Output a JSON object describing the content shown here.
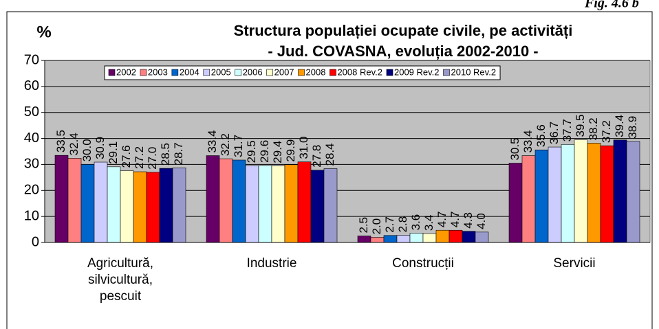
{
  "fig_label": "Fig. 4.6 b",
  "chart_data": {
    "type": "bar",
    "title": "Structura populației ocupate civile, pe activități",
    "subtitle": "- Jud. COVASNA, evoluția 2002-2010 -",
    "y_label": "%",
    "categories": [
      "Agricultură, silvicultură, pescuit",
      "Industrie",
      "Construcții",
      "Servicii"
    ],
    "series": [
      {
        "name": "2002",
        "color": "#660066",
        "values": [
          33.5,
          33.4,
          2.5,
          30.5
        ],
        "value_labels": [
          "33.5",
          "33.4",
          "2.5",
          "30.5"
        ]
      },
      {
        "name": "2003",
        "color": "#ff8080",
        "values": [
          32.4,
          32.2,
          2.0,
          33.4
        ],
        "value_labels": [
          "32.4",
          "32.2",
          "2.0",
          "33.4"
        ]
      },
      {
        "name": "2004",
        "color": "#0066cc",
        "values": [
          30.0,
          31.7,
          2.7,
          35.6
        ],
        "value_labels": [
          "30.0",
          "31.7",
          "2.7",
          "35.6"
        ]
      },
      {
        "name": "2005",
        "color": "#ccccff",
        "values": [
          30.9,
          29.5,
          2.8,
          36.7
        ],
        "value_labels": [
          "30.9",
          "29.5",
          "2.8",
          "36.7"
        ]
      },
      {
        "name": "2006",
        "color": "#ccffff",
        "values": [
          29.1,
          29.6,
          3.6,
          37.7
        ],
        "value_labels": [
          "29.1",
          "29.6",
          "3.6",
          "37.7"
        ]
      },
      {
        "name": "2007",
        "color": "#ffffcc",
        "values": [
          27.6,
          29.4,
          3.4,
          39.5
        ],
        "value_labels": [
          "27.6",
          "29.4",
          "3.4",
          "39.5"
        ]
      },
      {
        "name": "2008",
        "color": "#ff9900",
        "values": [
          27.2,
          29.9,
          4.7,
          38.2
        ],
        "value_labels": [
          "27.2",
          "29.9",
          "4.7",
          "38.2"
        ]
      },
      {
        "name": "2008 Rev.2",
        "color": "#ff0000",
        "values": [
          27.0,
          31.0,
          4.7,
          37.2
        ],
        "value_labels": [
          "27.0",
          "31.0",
          "4.7",
          "37.2"
        ]
      },
      {
        "name": "2009 Rev.2",
        "color": "#000080",
        "values": [
          28.5,
          27.8,
          4.3,
          39.4
        ],
        "value_labels": [
          "28.5",
          "27.8",
          "4.3",
          "39.4"
        ]
      },
      {
        "name": "2010 Rev.2",
        "color": "#9999cc",
        "values": [
          28.7,
          28.4,
          4.0,
          38.9
        ],
        "value_labels": [
          "28.7",
          "28.4",
          "4.0",
          "38.9"
        ]
      }
    ],
    "ylim": [
      0,
      70
    ],
    "yticks": [
      0,
      10,
      20,
      30,
      40,
      50,
      60,
      70
    ],
    "grid": true,
    "legend": "top",
    "plot_color": "#c0c0c0"
  }
}
